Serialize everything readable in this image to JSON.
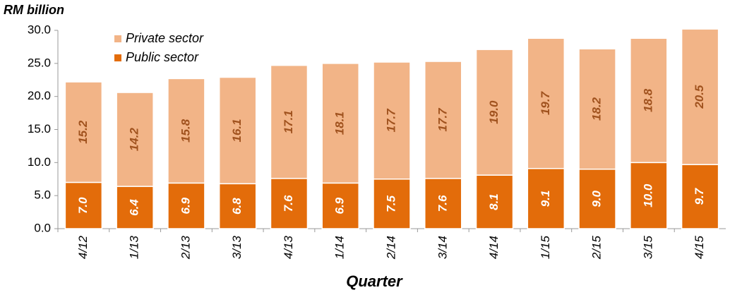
{
  "chart_data": {
    "type": "stacked_bar",
    "y_axis_label": "RM billion",
    "x_axis_label": "Quarter",
    "categories": [
      "4/12",
      "1/13",
      "2/13",
      "3/13",
      "4/13",
      "1/14",
      "2/14",
      "3/14",
      "4/14",
      "1/15",
      "2/15",
      "3/15",
      "4/15"
    ],
    "series": [
      {
        "name": "Public sector",
        "color": "#e36c0a",
        "label_color": "#ffffff",
        "values": [
          7.0,
          6.4,
          6.9,
          6.8,
          7.6,
          6.9,
          7.5,
          7.6,
          8.1,
          9.1,
          9.0,
          10.0,
          9.7
        ],
        "value_labels": [
          "7.0",
          "6.4",
          "6.9",
          "6.8",
          "7.6",
          "6.9",
          "7.5",
          "7.6",
          "8.1",
          "9.1",
          "9.0",
          "10.0",
          "9.7"
        ]
      },
      {
        "name": "Private sector",
        "color": "#f2b487",
        "label_color": "#a0521e",
        "values": [
          15.2,
          14.2,
          15.8,
          16.1,
          17.1,
          18.1,
          17.7,
          17.7,
          19.0,
          19.7,
          18.2,
          18.8,
          20.5
        ],
        "value_labels": [
          "15.2",
          "14.2",
          "15.8",
          "16.1",
          "17.1",
          "18.1",
          "17.7",
          "17.7",
          "19.0",
          "19.7",
          "18.2",
          "18.8",
          "20.5"
        ]
      }
    ],
    "ylim": [
      0,
      30
    ],
    "yticks": [
      {
        "value": 0,
        "label": "0.0"
      },
      {
        "value": 5,
        "label": "5.0"
      },
      {
        "value": 10,
        "label": "10.0"
      },
      {
        "value": 15,
        "label": "15.0"
      },
      {
        "value": 20,
        "label": "20.0"
      },
      {
        "value": 25,
        "label": "25.0"
      },
      {
        "value": 30,
        "label": "30.0"
      }
    ],
    "grid": false
  }
}
